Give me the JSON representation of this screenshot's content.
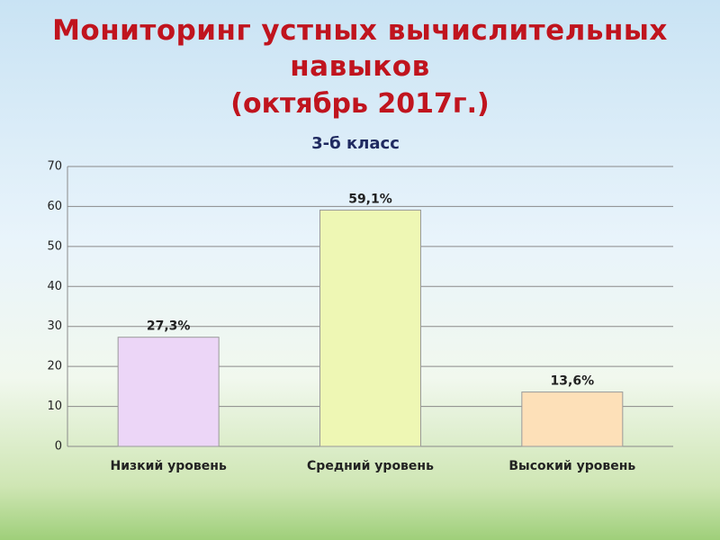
{
  "chart_data": {
    "type": "bar",
    "title": "Мониторинг  устных вычислительных навыков",
    "subtitle": "(октябрь  2017г.)",
    "chart_title": "3-б класс",
    "categories": [
      "Низкий уровень",
      "Средний уровень",
      "Высокий уровень"
    ],
    "values": [
      27.3,
      59.1,
      13.6
    ],
    "value_labels": [
      "27,3%",
      "59,1%",
      "13,6%"
    ],
    "colors": [
      "#ecd6f7",
      "#eef7b4",
      "#fde0b8"
    ],
    "ylim": [
      0,
      70
    ],
    "yticks": [
      0,
      10,
      20,
      30,
      40,
      50,
      60,
      70
    ],
    "grid": true
  }
}
